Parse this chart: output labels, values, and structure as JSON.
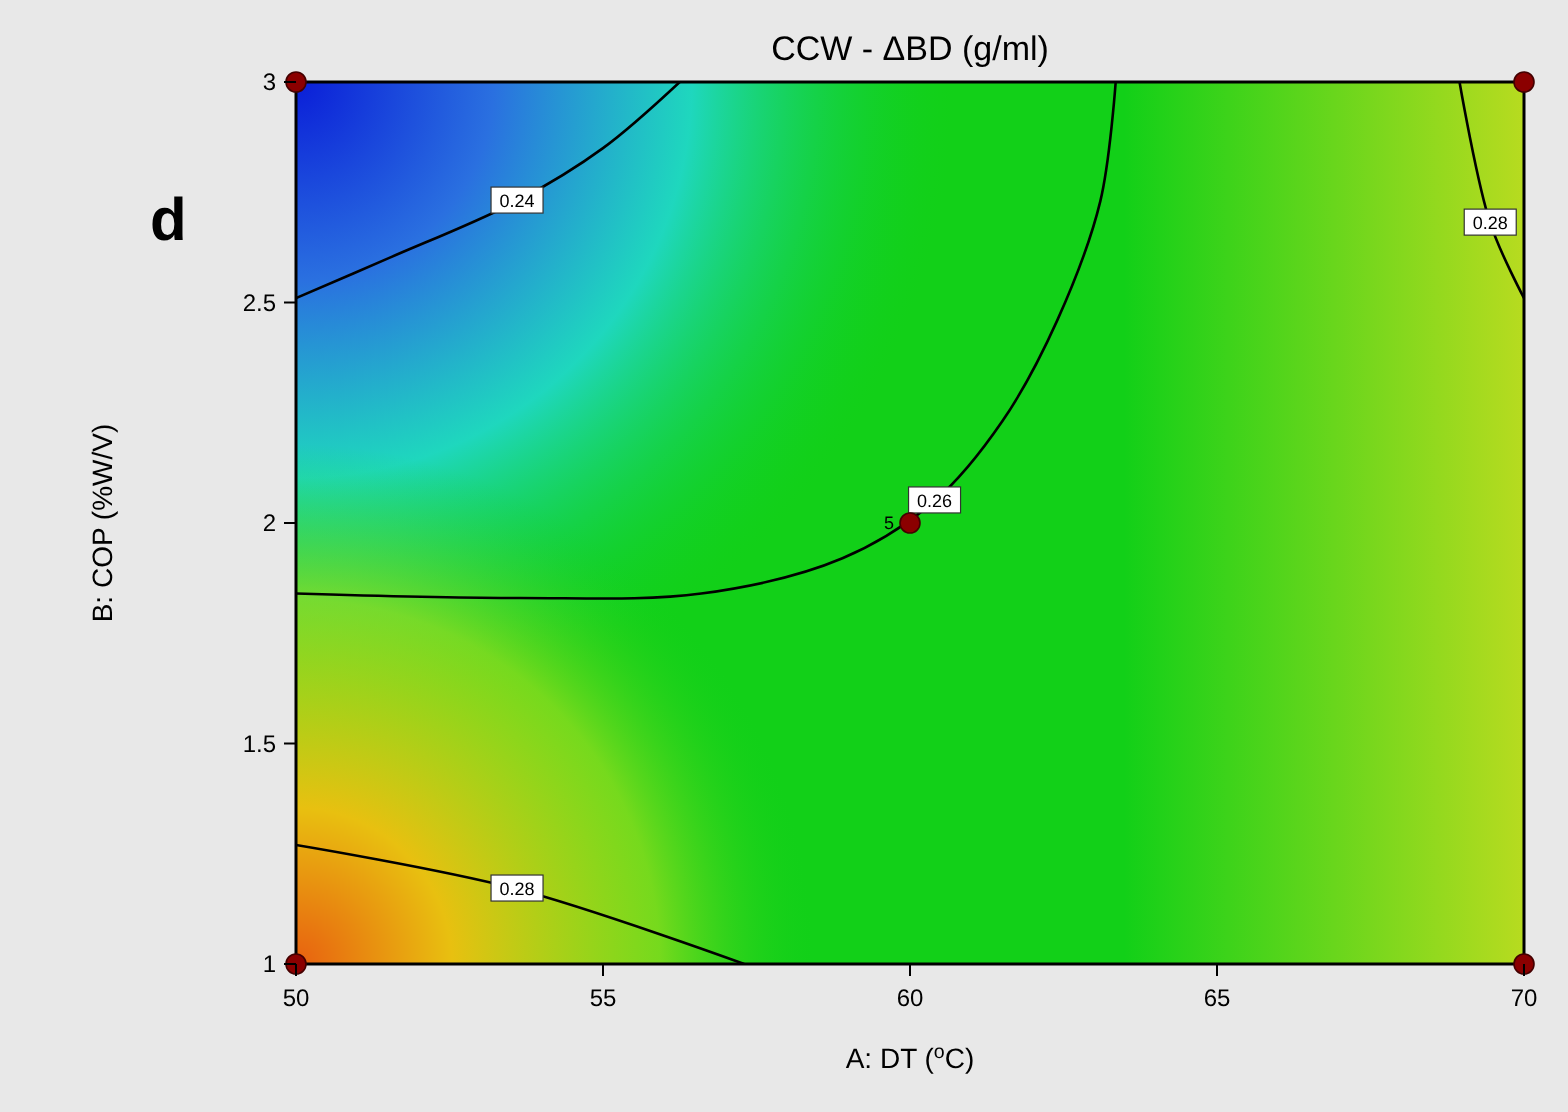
{
  "chart_data": {
    "type": "line",
    "title": "CCW - ΔBD (g/ml)",
    "xlabel": "A: DT ($^{o}$C)",
    "ylabel": "B: COP (%W/V)",
    "xlim": [
      50,
      70
    ],
    "ylim": [
      1,
      3
    ],
    "xticks": [
      50,
      55,
      60,
      65,
      70
    ],
    "yticks": [
      1,
      1.5,
      2,
      2.5,
      3
    ],
    "grid": false,
    "line_style": "solid",
    "annotations": [
      "d",
      {
        "text": "5",
        "x": 60,
        "y": 2
      }
    ],
    "series": [
      {
        "name": "0.24",
        "color": "#000000",
        "x": [
          50,
          51.5,
          53.6,
          55,
          56.25
        ],
        "values": [
          2.51,
          2.6,
          2.73,
          2.85,
          3
        ]
      },
      {
        "name": "0.26",
        "color": "#000000",
        "x": [
          50,
          53.6,
          56.6,
          58.9,
          60.4,
          61.5,
          62.4,
          63.1,
          63.35
        ],
        "values": [
          1.84,
          1.83,
          1.84,
          1.92,
          2.05,
          2.23,
          2.46,
          2.73,
          3
        ]
      },
      {
        "name": "0.28",
        "color": "#000000",
        "x": [
          50,
          53.6,
          57.3
        ],
        "values": [
          1.27,
          1.17,
          1
        ]
      },
      {
        "name": "0.28",
        "color": "#000000",
        "x": [
          68.95,
          69.45,
          70
        ],
        "values": [
          3,
          2.68,
          2.51
        ]
      },
      {
        "type": "scatter",
        "marker": "circle",
        "color": "#8b0000",
        "x": [
          50,
          70,
          50,
          70,
          60
        ],
        "values": [
          3,
          3,
          1,
          1,
          2
        ]
      }
    ]
  }
}
